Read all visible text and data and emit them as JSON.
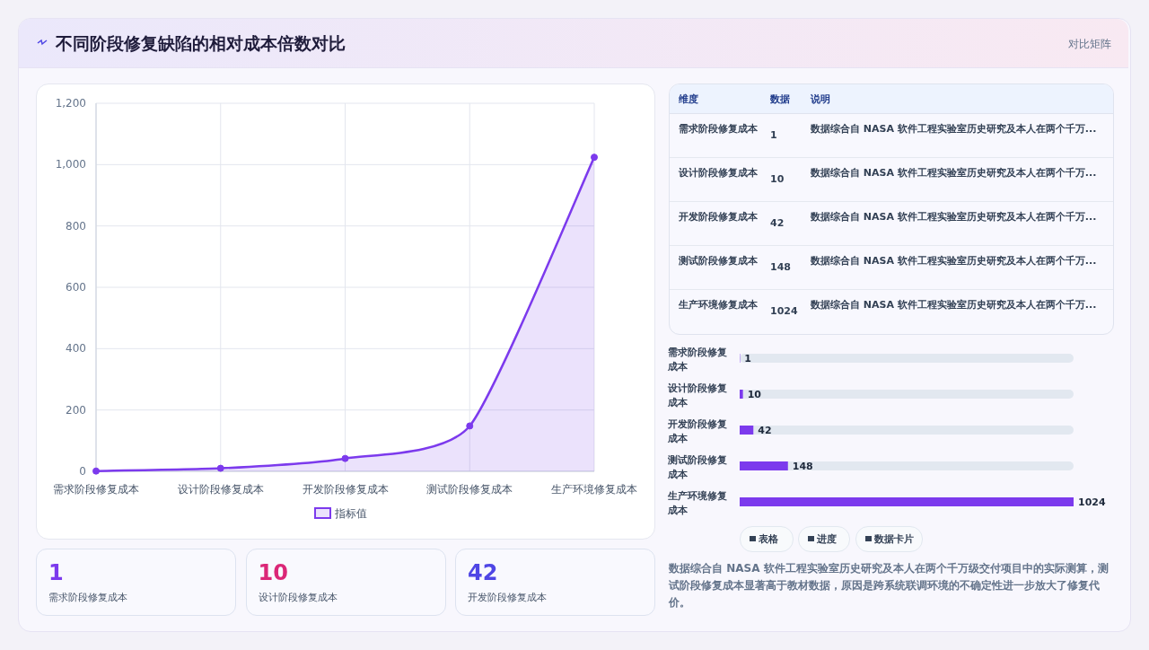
{
  "chart_data": [
    {
      "type": "area",
      "title": "不同阶段修复缺陷的相对成本倍数对比",
      "categories": [
        "需求阶段修复成本",
        "设计阶段修复成本",
        "开发阶段修复成本",
        "测试阶段修复成本",
        "生产环境修复成本"
      ],
      "series": [
        {
          "name": "指标值",
          "color": "#7c3aed",
          "values": [
            1,
            10,
            42,
            148,
            1024
          ]
        }
      ],
      "ylim": [
        0,
        1200
      ],
      "yticks": [
        0,
        200,
        400,
        600,
        800,
        {
          "value": 1000,
          "label": "1,000"
        },
        {
          "value": 1200,
          "label": "1,200"
        }
      ],
      "grid": true,
      "legend": "bottom",
      "marker": "circle"
    },
    {
      "type": "other",
      "title": "对比矩阵",
      "ylabel": "维度",
      "xlabel": "数据",
      "y2label": "说明",
      "categories": [
        "需求阶段修复成本",
        "设计阶段修复成本",
        "开发阶段修复成本",
        "测试阶段修复成本",
        "生产环境修复成本"
      ],
      "values": [
        1,
        10,
        42,
        148,
        1024
      ],
      "data_labels": true,
      "y2_categories": [
        "数据综合自 NASA 软件工程实验室历史研究及本人在两个千万...",
        "数据综合自 NASA 软件工程实验室历史研究及本人在两个千万...",
        "数据综合自 NASA 软件工程实验室历史研究及本人在两个千万...",
        "数据综合自 NASA 软件工程实验室历史研究及本人在两个千万...",
        "数据综合自 NASA 软件工程实验室历史研究及本人在两个千万..."
      ]
    },
    {
      "type": "bar",
      "orientation": "horizontal",
      "categories": [
        "需求阶段修复成本",
        "设计阶段修复成本",
        "开发阶段修复成本",
        "测试阶段修复成本",
        "生产环境修复成本"
      ],
      "values": [
        1,
        10,
        42,
        148,
        1024
      ],
      "color": "#7c3aed",
      "data_labels": true
    },
    {
      "type": "other",
      "categories": [
        "需求阶段修复成本",
        "设计阶段修复成本",
        "开发阶段修复成本"
      ],
      "values": [
        1,
        10,
        42
      ],
      "data_labels": true
    },
    {
      "type": "other",
      "annotations": [
        "表格",
        "进度",
        "数据卡片",
        "数据综合自 NASA 软件工程实验室历史研究及本人在两个千万级交付项目中的实际测算，测试阶段修复成本显著高于教材数据，原因是跨系统联调环境的不确定性进一步放大了修复代价。"
      ]
    }
  ]
}
